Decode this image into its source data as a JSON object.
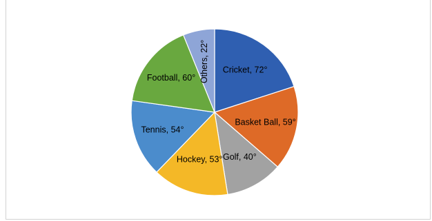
{
  "chart_data": {
    "type": "pie",
    "title": "",
    "unit": "°",
    "slices": [
      {
        "label": "Cricket",
        "value": 72,
        "color": "#2f5fb1"
      },
      {
        "label": "Basket Ball",
        "value": 59,
        "color": "#de6a27"
      },
      {
        "label": "Golf",
        "value": 40,
        "color": "#a2a2a2"
      },
      {
        "label": "Hockey",
        "value": 53,
        "color": "#f4b827"
      },
      {
        "label": "Tennis",
        "value": 54,
        "color": "#4b8ccc"
      },
      {
        "label": "Football",
        "value": 60,
        "color": "#69a83f"
      },
      {
        "label": "Others",
        "value": 22,
        "color": "#8ea5d7"
      }
    ],
    "labels": [
      "Cricket, 72°",
      "Basket Ball, 59°",
      "Golf, 40°",
      "Hockey, 53°",
      "Tennis, 54°",
      "Football, 60°",
      "Others, 22°"
    ],
    "legend": "none"
  }
}
